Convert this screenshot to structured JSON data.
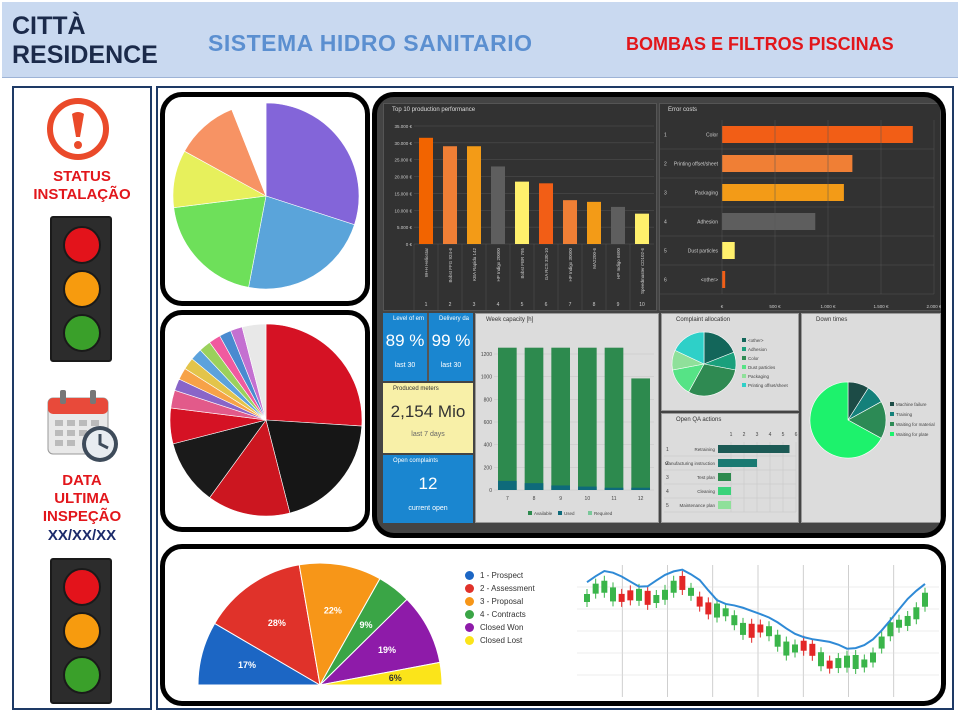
{
  "header": {
    "brand": "CITTÀ\nRESIDENCE",
    "system_title": "SISTEMA  HIDRO SANITARIO",
    "subtitle": "BOMBAS E FILTROS PISCINAS"
  },
  "sidebar": {
    "status_label": "STATUS\nINSTALAÇÃO",
    "date_label": "DATA\nULTIMA\nINSPEÇÃO",
    "date_value": "XX/XX/XX",
    "icons": [
      "alert-icon",
      "calendar-clock-icon"
    ],
    "lamp_colors": [
      "#e3131b",
      "#f79b0e",
      "#3aa02a"
    ]
  },
  "dashboard": {
    "top10": {
      "title": "Top 10 production performance",
      "y_ticks": [
        "35.000 €",
        "30.000 €",
        "25.000 €",
        "20.000 €",
        "15.000 €",
        "10.000 €",
        "5.000 €",
        "0 €"
      ],
      "labels": [
        "W+H Heliostar",
        "Bobst FFG 924-6",
        "KBA Rapida 142",
        "HP Indigo 20000",
        "Bobst FBR 795",
        "GA RCS 330-10",
        "HP Indigo 30000",
        "MA2200-6",
        "HP Indigo 6600",
        "Speedmaster CD102-6"
      ],
      "numbers": [
        "1",
        "2",
        "3",
        "4",
        "5",
        "6",
        "7",
        "8",
        "9",
        "10"
      ]
    },
    "error_costs": {
      "title": "Error costs",
      "rows": [
        "Color",
        "Printing offset/sheet",
        "Packaging",
        "Adhesion",
        "Dust particles",
        "<other>"
      ],
      "numbers": [
        "1",
        "2",
        "3",
        "4",
        "5",
        "6"
      ],
      "x_ticks": [
        "€",
        "500 €",
        "1.000 €",
        "1.500 €",
        "2.000 €"
      ]
    },
    "kpis": [
      {
        "title": "Level of em",
        "value": "89 %",
        "foot": "last 30"
      },
      {
        "title": "Delivery da",
        "value": "99 %",
        "foot": "last 30"
      }
    ],
    "produced": {
      "title": "Produced meters",
      "value": "2,154 Mio",
      "foot": "last 7 days"
    },
    "complaints": {
      "title": "Open complaints",
      "value": "12",
      "foot": "current open"
    },
    "week_capacity": {
      "title": "Week capacity [h]",
      "y_ticks": [
        "1200",
        "1000",
        "800",
        "600",
        "400",
        "200",
        "0"
      ],
      "x_ticks": [
        "7",
        "8",
        "9",
        "10",
        "11",
        "12"
      ],
      "legend": [
        "Available",
        "Used",
        "Required"
      ]
    },
    "complaint_alloc": {
      "title": "Complaint allocation",
      "legend": [
        "<other>",
        "Adhesion",
        "Color",
        "Dust particles",
        "Packaging",
        "Printing offset/sheet"
      ]
    },
    "down_times": {
      "title": "Down times",
      "legend": [
        "Machine failure",
        "Training",
        "Waiting for material",
        "Waiting for plate"
      ]
    },
    "qa_actions": {
      "title": "Open QA actions",
      "axis": [
        "1",
        "2",
        "3",
        "4",
        "5",
        "6"
      ],
      "rows": [
        "Retraining",
        "Manufacturing instruction",
        "Test plan",
        "Cleaning",
        "Maintenance plan"
      ],
      "numbers": [
        "1",
        "2",
        "3",
        "4",
        "5"
      ]
    },
    "funnel": {
      "legend": [
        "1 - Prospect",
        "2 - Assessment",
        "3 - Proposal",
        "4 - Contracts",
        "Closed Won",
        "Closed Lost"
      ],
      "slice_labels": [
        "17%",
        "28%",
        "22%",
        "9%",
        "19%",
        "6%"
      ]
    }
  },
  "chart_data": [
    {
      "type": "pie",
      "title": "",
      "values": [
        30,
        23,
        20,
        10,
        11,
        6
      ],
      "colors": [
        "#8365d9",
        "#5aa4da",
        "#6ee05a",
        "#e7f05c",
        "#f79364",
        "#ffffff"
      ]
    },
    {
      "type": "pie",
      "title": "",
      "values": [
        26,
        20,
        14,
        11,
        6,
        3,
        2,
        2,
        2,
        2,
        2,
        2,
        2,
        2,
        4
      ],
      "colors": [
        "#d51224",
        "#161616",
        "#cc1620",
        "#1a1a1a",
        "#d51224",
        "#e25a8a",
        "#8965c8",
        "#f7a247",
        "#e3c44a",
        "#5ca2dc",
        "#9bd15c",
        "#f05a9f",
        "#4a8ad0",
        "#c470d1",
        "#e8e8e8"
      ]
    },
    {
      "type": "bar",
      "title": "Top 10 production performance",
      "categories": [
        "W+H Heliostar",
        "Bobst FFG 924-6",
        "KBA Rapida 142",
        "HP Indigo 20000",
        "Bobst FBR 795",
        "GA RCS 330-10",
        "HP Indigo 30000",
        "MA2200-6",
        "HP Indigo 6600",
        "Speedmaster CD102-6"
      ],
      "values": [
        31500,
        29000,
        29000,
        23000,
        18500,
        18000,
        13000,
        12500,
        11000,
        9000
      ],
      "colors": [
        "#f26400",
        "#f07f35",
        "#f39b17",
        "#5e5e5e",
        "#fff06c",
        "#f25e16",
        "#f07f35",
        "#f39b17",
        "#5e5e5e",
        "#fff06c"
      ],
      "ylim": [
        0,
        35000
      ]
    },
    {
      "type": "bar",
      "title": "Error costs",
      "categories": [
        "Color",
        "Printing offset/sheet",
        "Packaging",
        "Adhesion",
        "Dust particles",
        "<other>"
      ],
      "values": [
        1800,
        1230,
        1150,
        880,
        120,
        30
      ],
      "colors": [
        "#f25e16",
        "#f07f35",
        "#f39b17",
        "#5e5e5e",
        "#fff06c",
        "#f25e16"
      ],
      "xlim": [
        0,
        2000
      ]
    },
    {
      "type": "bar",
      "title": "Week capacity [h]",
      "categories": [
        "7",
        "8",
        "9",
        "10",
        "11",
        "12"
      ],
      "series": [
        {
          "name": "Available",
          "values": [
            1250,
            1250,
            1250,
            1250,
            1250,
            980
          ]
        },
        {
          "name": "Used",
          "values": [
            80,
            60,
            40,
            30,
            20,
            20
          ]
        }
      ],
      "ylim": [
        0,
        1300
      ]
    },
    {
      "type": "pie",
      "title": "Complaint allocation",
      "values": [
        19,
        9,
        30,
        14,
        10,
        18
      ],
      "colors": [
        "#13665a",
        "#1aa07c",
        "#2f8a52",
        "#56e386",
        "#8fe09a",
        "#2ed0c8"
      ]
    },
    {
      "type": "pie",
      "title": "Down times",
      "values": [
        9,
        8,
        16,
        67
      ],
      "colors": [
        "#1c4b46",
        "#14807a",
        "#2c8a55",
        "#1df26c"
      ]
    },
    {
      "type": "bar",
      "title": "Open QA actions",
      "categories": [
        "Retraining",
        "Manufacturing instruction",
        "Test plan",
        "Cleaning",
        "Maintenance plan"
      ],
      "values": [
        5.5,
        3,
        1,
        1,
        1
      ],
      "xlim": [
        0,
        6
      ]
    },
    {
      "type": "pie",
      "title": "",
      "categories": [
        "1 - Prospect",
        "2 - Assessment",
        "3 - Proposal",
        "4 - Contracts",
        "Closed Won",
        "Closed Lost"
      ],
      "values": [
        17,
        28,
        22,
        9,
        19,
        6
      ],
      "colors": [
        "#1c66c4",
        "#e0322a",
        "#f79618",
        "#3aa546",
        "#8e1ba9",
        "#fbe41a"
      ]
    },
    {
      "type": "line",
      "title": "",
      "values": [
        0.75,
        0.82,
        0.78,
        0.72,
        0.8,
        0.83,
        0.76,
        0.62,
        0.58,
        0.5,
        0.45,
        0.38,
        0.33,
        0.28,
        0.22,
        0.3,
        0.45,
        0.6,
        0.72
      ]
    }
  ]
}
